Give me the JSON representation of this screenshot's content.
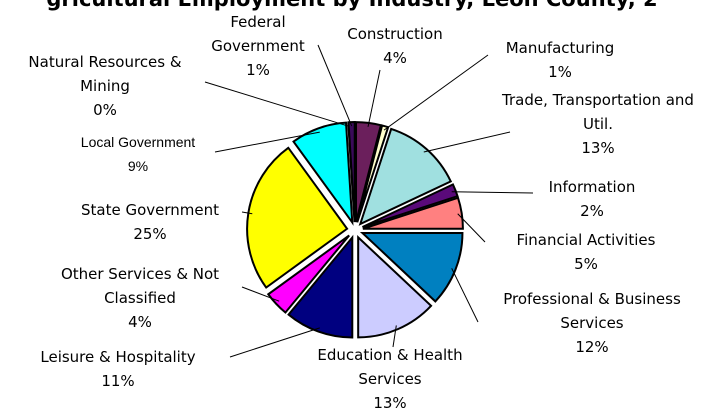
{
  "chart_data": {
    "type": "pie",
    "title": "gricultural Employment by Industry, Leon County, 2",
    "categories": [
      "Construction",
      "Manufacturing",
      "Trade, Transportation and Util.",
      "Information",
      "Financial Activities",
      "Professional & Business Services",
      "Education & Health Services",
      "Leisure & Hospitality",
      "Other Services & Not Classified",
      "State Government",
      "Local Government",
      "Natural Resources & Mining",
      "Federal Government"
    ],
    "values": [
      4,
      1,
      13,
      2,
      5,
      12,
      13,
      11,
      4,
      25,
      9,
      0,
      1
    ],
    "value_labels": [
      "4%",
      "1%",
      "13%",
      "2%",
      "5%",
      "12%",
      "13%",
      "11%",
      "4%",
      "25%",
      "9%",
      "0%",
      "1%"
    ],
    "colors": [
      "#6b1f5c",
      "#ffffcc",
      "#a0e0e0",
      "#5a0a7a",
      "#ff8080",
      "#0080c0",
      "#ccccff",
      "#000080",
      "#ff00ff",
      "#ffff00",
      "#00ffff",
      "#7f7f7f",
      "#3a0a5a"
    ]
  }
}
